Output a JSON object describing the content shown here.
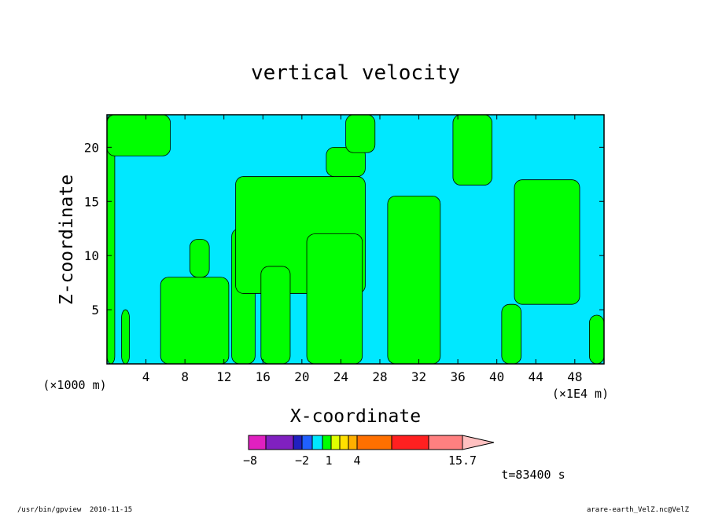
{
  "chart_data": {
    "type": "contour",
    "title": "vertical velocity",
    "xlabel": "X-coordinate",
    "ylabel": "Z-coordinate",
    "x_unit_left": "(×1000 m)",
    "x_unit_right": "(×1E4 m)",
    "xlim": [
      0,
      51
    ],
    "ylim": [
      0,
      23
    ],
    "x_ticks": [
      4,
      8,
      12,
      16,
      20,
      24,
      28,
      32,
      36,
      40,
      44,
      48
    ],
    "x_tick_labels": [
      "4",
      "8",
      "12",
      "16",
      "20",
      "24",
      "28",
      "32",
      "36",
      "40",
      "44",
      "48"
    ],
    "y_ticks": [
      5,
      10,
      15,
      20
    ],
    "y_tick_labels": [
      "5",
      "10",
      "15",
      "20"
    ],
    "colorbar": {
      "labels": [
        {
          "value": -8,
          "text": "−8"
        },
        {
          "value": -2,
          "text": "−2"
        },
        {
          "value": 1,
          "text": "1"
        },
        {
          "value": 4,
          "text": "4"
        },
        {
          "value": 15.7,
          "text": "15.7"
        }
      ],
      "bins": [
        {
          "color": "#e020c0"
        },
        {
          "color": "#8020c0"
        },
        {
          "color": "#2020c0"
        },
        {
          "color": "#2060ff"
        },
        {
          "color": "#00e8ff"
        },
        {
          "color": "#00ff00"
        },
        {
          "color": "#e0ff00"
        },
        {
          "color": "#ffe000"
        },
        {
          "color": "#ffb000"
        },
        {
          "color": "#ff7000"
        },
        {
          "color": "#ff2020"
        },
        {
          "color": "#ff8080"
        }
      ],
      "arrow_color": "#ffc0c0"
    },
    "field_colors": {
      "background": "#00e8ff",
      "positive": "#00ff00"
    },
    "green_regions": [
      {
        "x0": 0.0,
        "x1": 0.8,
        "z0": 0,
        "z1": 23
      },
      {
        "x0": 0.0,
        "x1": 6.5,
        "z0": 19.2,
        "z1": 23
      },
      {
        "x0": 1.5,
        "x1": 2.3,
        "z0": 0,
        "z1": 5
      },
      {
        "x0": 5.5,
        "x1": 12.5,
        "z0": 0,
        "z1": 8
      },
      {
        "x0": 8.5,
        "x1": 10.5,
        "z0": 8,
        "z1": 11.5
      },
      {
        "x0": 12.8,
        "x1": 15.2,
        "z0": 0,
        "z1": 12.5
      },
      {
        "x0": 13.2,
        "x1": 26.5,
        "z0": 6.5,
        "z1": 17.3
      },
      {
        "x0": 15.8,
        "x1": 18.8,
        "z0": 0,
        "z1": 9
      },
      {
        "x0": 20.5,
        "x1": 26.2,
        "z0": 0,
        "z1": 12
      },
      {
        "x0": 22.5,
        "x1": 26.5,
        "z0": 17.3,
        "z1": 20
      },
      {
        "x0": 24.5,
        "x1": 27.5,
        "z0": 19.5,
        "z1": 23
      },
      {
        "x0": 28.8,
        "x1": 34.2,
        "z0": 0,
        "z1": 15.5
      },
      {
        "x0": 35.5,
        "x1": 39.5,
        "z0": 16.5,
        "z1": 23
      },
      {
        "x0": 40.5,
        "x1": 42.5,
        "z0": 0,
        "z1": 5.5
      },
      {
        "x0": 41.8,
        "x1": 48.5,
        "z0": 5.5,
        "z1": 17
      },
      {
        "x0": 49.5,
        "x1": 51,
        "z0": 0,
        "z1": 4.5
      }
    ]
  },
  "footer": {
    "time_label": "t=83400 s",
    "program_path": "/usr/bin/gpview",
    "date": "2010-11-15",
    "source_file": "arare-earth_VelZ.nc@VelZ"
  }
}
